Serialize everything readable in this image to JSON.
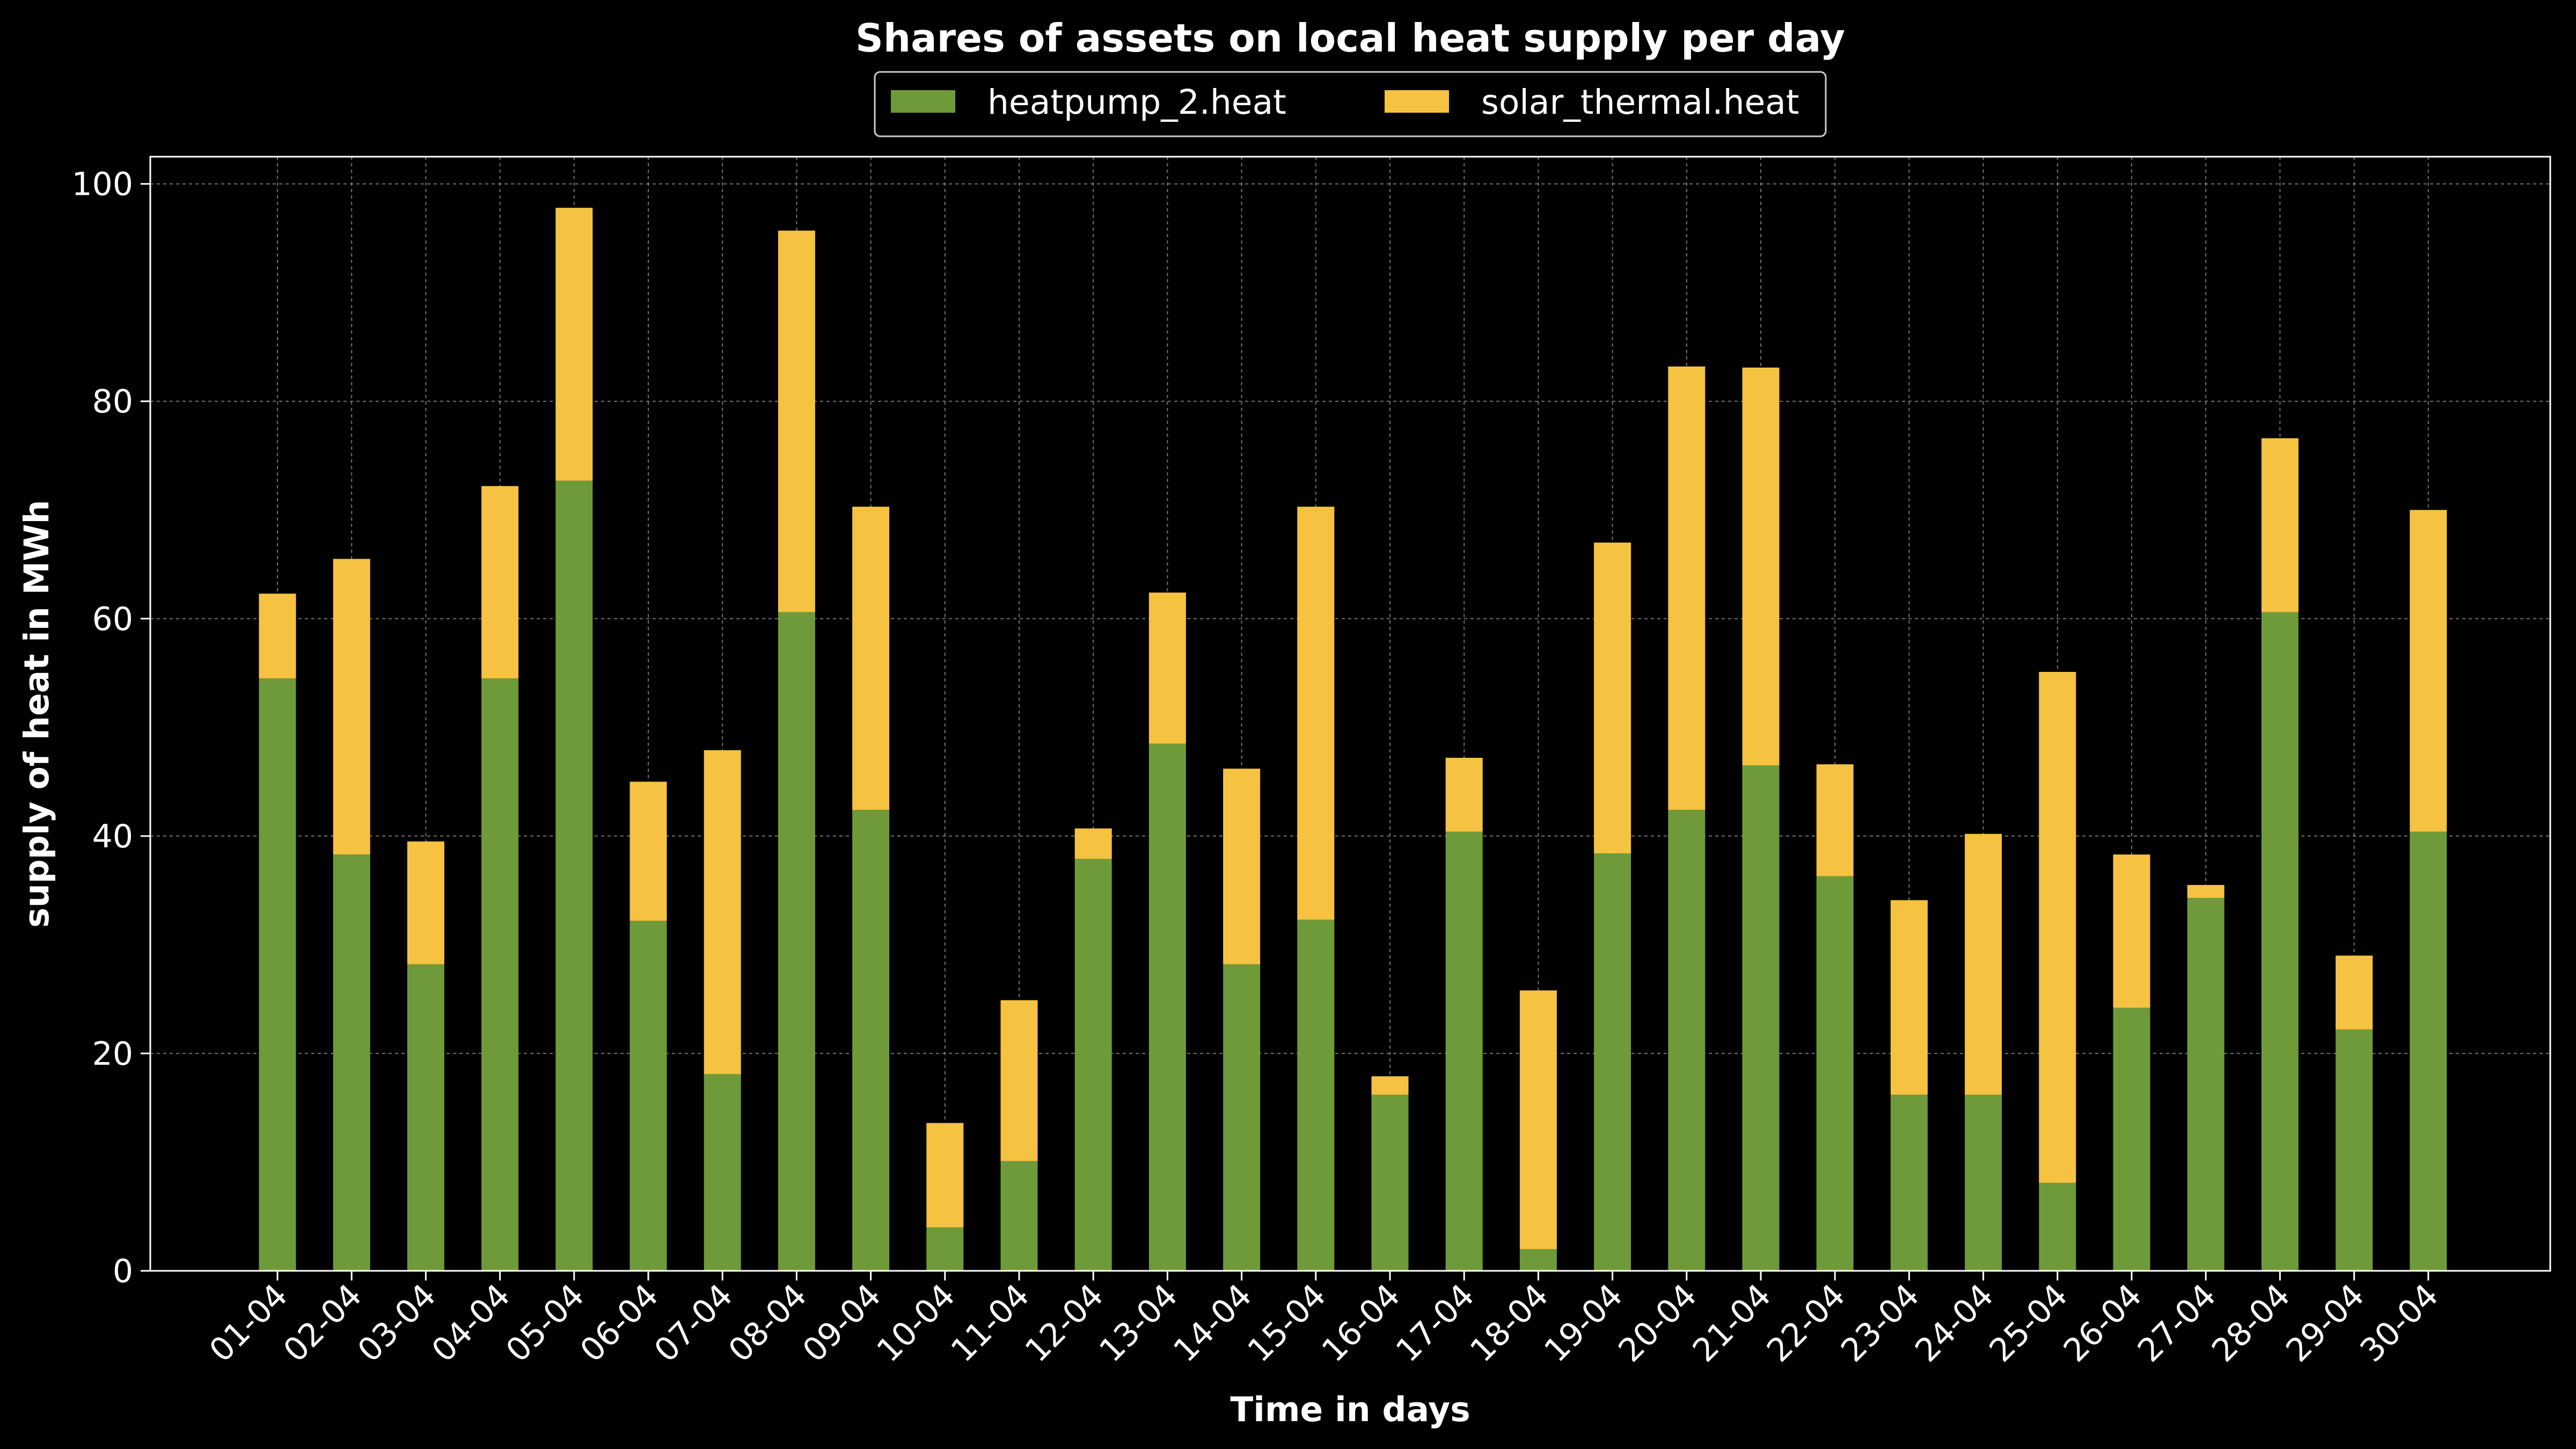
{
  "colors": {
    "background": "#000000",
    "heatpump": "#6f9a3a",
    "solar": "#f5c242",
    "axis": "#ffffff"
  },
  "chart_data": {
    "type": "bar",
    "stacked": true,
    "title": "Shares of assets on local heat supply per day",
    "xlabel": "Time in days",
    "ylabel": "supply of heat in MWh",
    "ylim": [
      0,
      102.5
    ],
    "yticks": [
      0,
      20,
      40,
      60,
      80,
      100
    ],
    "grid": true,
    "legend_position": "top-center",
    "categories": [
      "01-04",
      "02-04",
      "03-04",
      "04-04",
      "05-04",
      "06-04",
      "07-04",
      "08-04",
      "09-04",
      "10-04",
      "11-04",
      "12-04",
      "13-04",
      "14-04",
      "15-04",
      "16-04",
      "17-04",
      "18-04",
      "19-04",
      "20-04",
      "21-04",
      "22-04",
      "23-04",
      "24-04",
      "25-04",
      "26-04",
      "27-04",
      "28-04",
      "29-04",
      "30-04"
    ],
    "series": [
      {
        "name": "heatpump_2.heat",
        "color": "#6f9a3a",
        "values": [
          54.5,
          38.3,
          28.2,
          54.5,
          72.7,
          32.2,
          18.1,
          60.6,
          42.4,
          4.0,
          10.1,
          37.9,
          48.5,
          28.2,
          32.3,
          16.2,
          40.4,
          2.0,
          38.4,
          42.4,
          46.5,
          36.3,
          16.2,
          16.2,
          8.1,
          24.2,
          34.3,
          60.6,
          22.2,
          40.4
        ]
      },
      {
        "name": "solar_thermal.heat",
        "color": "#f5c242",
        "values": [
          7.8,
          27.2,
          11.3,
          17.7,
          25.1,
          12.8,
          29.8,
          35.1,
          27.9,
          9.6,
          14.8,
          2.8,
          13.9,
          18.0,
          38.0,
          1.7,
          6.8,
          23.8,
          28.6,
          40.8,
          36.6,
          10.3,
          17.9,
          24.0,
          47.0,
          14.1,
          1.2,
          16.0,
          6.8,
          29.6
        ]
      }
    ]
  }
}
